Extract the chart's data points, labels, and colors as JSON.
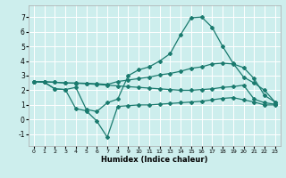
{
  "xlabel": "Humidex (Indice chaleur)",
  "bg_color": "#cdeeed",
  "grid_color": "#ffffff",
  "line_color": "#1a7a6e",
  "xlim": [
    -0.5,
    23.5
  ],
  "ylim": [
    -1.8,
    7.8
  ],
  "yticks": [
    -1,
    0,
    1,
    2,
    3,
    4,
    5,
    6,
    7
  ],
  "xticks": [
    0,
    1,
    2,
    3,
    4,
    5,
    6,
    7,
    8,
    9,
    10,
    11,
    12,
    13,
    14,
    15,
    16,
    17,
    18,
    19,
    20,
    21,
    22,
    23
  ],
  "line_peak_x": [
    0,
    1,
    2,
    3,
    4,
    5,
    6,
    7,
    8,
    9,
    10,
    11,
    12,
    13,
    14,
    15,
    16,
    17,
    18,
    19,
    20,
    21,
    22,
    23
  ],
  "line_peak_y": [
    2.6,
    2.55,
    2.1,
    2.05,
    2.2,
    0.7,
    0.55,
    1.15,
    1.4,
    3.0,
    3.4,
    3.6,
    4.0,
    4.5,
    5.8,
    6.95,
    7.0,
    6.3,
    5.0,
    3.85,
    2.9,
    2.5,
    2.0,
    1.2
  ],
  "line_upper_x": [
    0,
    1,
    2,
    3,
    4,
    5,
    6,
    7,
    8,
    9,
    10,
    11,
    12,
    13,
    14,
    15,
    16,
    17,
    18,
    19,
    20,
    21,
    22,
    23
  ],
  "line_upper_y": [
    2.6,
    2.58,
    2.55,
    2.5,
    2.5,
    2.48,
    2.45,
    2.4,
    2.6,
    2.7,
    2.8,
    2.9,
    3.05,
    3.15,
    3.3,
    3.5,
    3.6,
    3.8,
    3.85,
    3.8,
    3.55,
    2.8,
    1.65,
    1.2
  ],
  "line_mid_x": [
    0,
    1,
    2,
    3,
    4,
    5,
    6,
    7,
    8,
    9,
    10,
    11,
    12,
    13,
    14,
    15,
    16,
    17,
    18,
    19,
    20,
    21,
    22,
    23
  ],
  "line_mid_y": [
    2.6,
    2.58,
    2.55,
    2.5,
    2.48,
    2.45,
    2.4,
    2.35,
    2.3,
    2.25,
    2.2,
    2.15,
    2.1,
    2.05,
    2.0,
    2.0,
    2.05,
    2.1,
    2.2,
    2.25,
    2.35,
    1.4,
    1.15,
    1.05
  ],
  "line_bot_x": [
    0,
    1,
    2,
    3,
    4,
    5,
    6,
    7,
    8,
    9,
    10,
    11,
    12,
    13,
    14,
    15,
    16,
    17,
    18,
    19,
    20,
    21,
    22,
    23
  ],
  "line_bot_y": [
    2.6,
    2.55,
    2.1,
    2.05,
    0.75,
    0.6,
    -0.1,
    -1.2,
    0.9,
    0.95,
    1.0,
    1.0,
    1.05,
    1.1,
    1.15,
    1.2,
    1.25,
    1.35,
    1.45,
    1.5,
    1.35,
    1.2,
    1.0,
    1.0
  ]
}
